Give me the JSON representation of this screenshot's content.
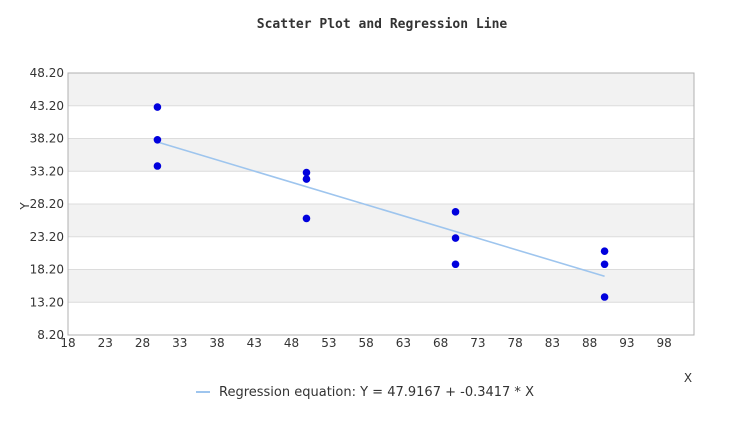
{
  "chart_data": {
    "type": "scatter",
    "title": "Scatter Plot and Regression Line",
    "xlabel": "X",
    "ylabel": "Y",
    "xlim": [
      18,
      102
    ],
    "ylim": [
      8.2,
      48.2
    ],
    "x_ticks": [
      "18",
      "23",
      "28",
      "33",
      "38",
      "43",
      "48",
      "53",
      "58",
      "63",
      "68",
      "73",
      "78",
      "83",
      "88",
      "93",
      "98"
    ],
    "y_ticks": [
      "8.20",
      "13.20",
      "18.20",
      "23.20",
      "28.20",
      "33.20",
      "38.20",
      "43.20",
      "48.20"
    ],
    "grid": "horizontal bands",
    "legend_position": "bottom",
    "series": [
      {
        "points": [
          {
            "x": 30,
            "y": 43
          },
          {
            "x": 30,
            "y": 38
          },
          {
            "x": 30,
            "y": 34
          },
          {
            "x": 50,
            "y": 33
          },
          {
            "x": 50,
            "y": 32
          },
          {
            "x": 50,
            "y": 26
          },
          {
            "x": 70,
            "y": 27
          },
          {
            "x": 70,
            "y": 23
          },
          {
            "x": 70,
            "y": 19
          },
          {
            "x": 90,
            "y": 21
          },
          {
            "x": 90,
            "y": 19
          },
          {
            "x": 90,
            "y": 14
          }
        ],
        "color": "#0000dd"
      },
      {
        "name": "Regression equation: Y = 47.9167 + -0.3417 * X",
        "type": "line",
        "intercept": 47.9167,
        "slope": -0.3417,
        "x_range": [
          30,
          90
        ],
        "color": "#9ec5ee"
      }
    ]
  },
  "colors": {
    "band": "#f2f2f2",
    "grid": "#dcdcdc",
    "axis": "#b0b0b0",
    "text": "#333333"
  }
}
